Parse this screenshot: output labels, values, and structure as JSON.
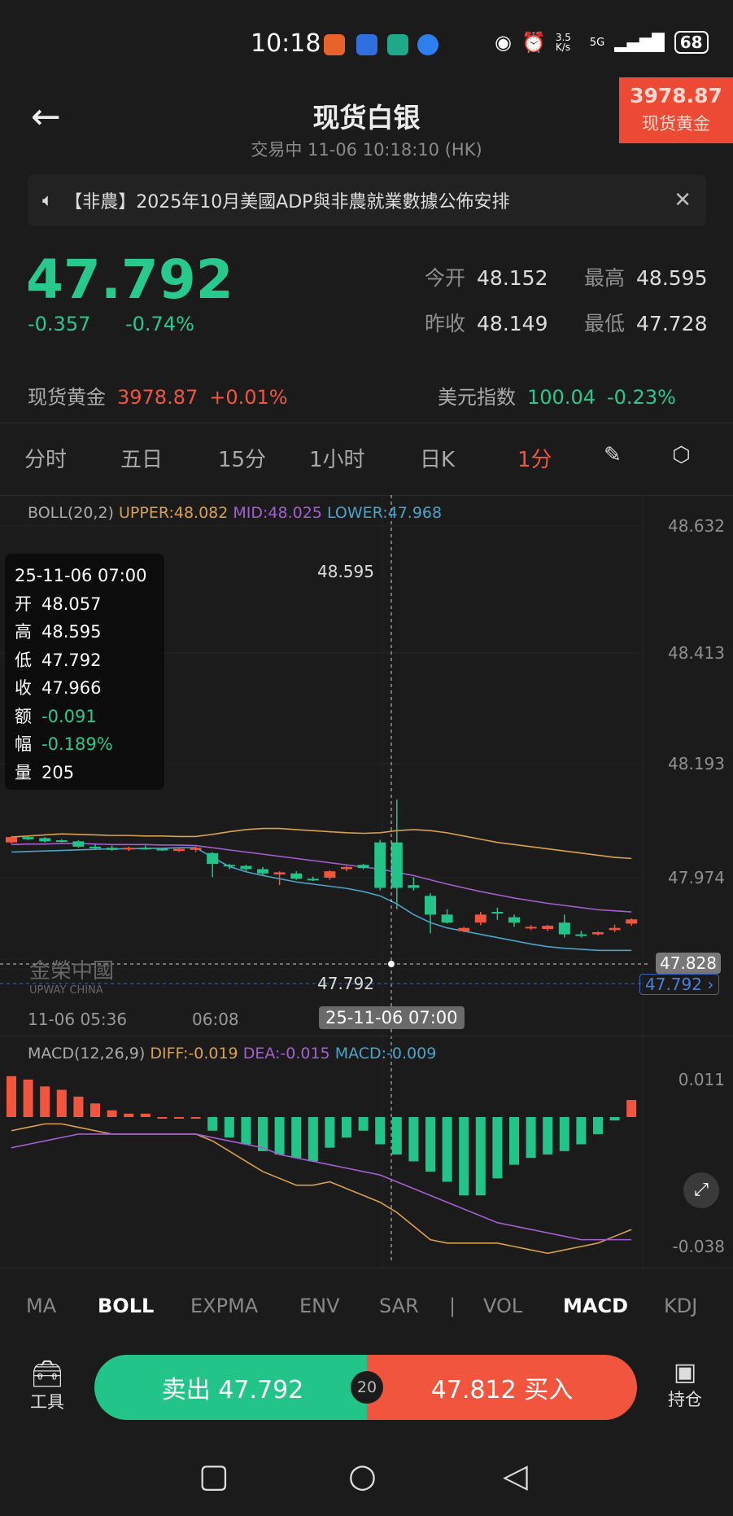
{
  "status_bar": {
    "time": "10:18",
    "net_speed": "3.5 K/s",
    "network": "5G",
    "battery": "68"
  },
  "header": {
    "title": "现货白银",
    "subtitle": "交易中  11-06 10:18:10 (HK)",
    "badge_value": "3978.87",
    "badge_label": "现货黄金"
  },
  "notice": {
    "text": "【非農】2025年10月美國ADP與非農就業數據公佈安排"
  },
  "quote": {
    "price": "47.792",
    "change": "-0.357",
    "change_pct": "-0.74%",
    "stats": [
      {
        "k": "今开",
        "v": "48.152"
      },
      {
        "k": "最高",
        "v": "48.595"
      },
      {
        "k": "昨收",
        "v": "48.149"
      },
      {
        "k": "最低",
        "v": "47.728"
      }
    ]
  },
  "related": {
    "gold_label": "现货黄金",
    "gold_value": "3978.87",
    "gold_pct": "+0.01%",
    "usd_label": "美元指数",
    "usd_value": "100.04",
    "usd_pct": "-0.23%"
  },
  "tabs": [
    "分时",
    "五日",
    "15分",
    "1小时",
    "日K",
    "1分"
  ],
  "active_tab": "1分",
  "colors": {
    "up": "#f2553d",
    "down": "#23c48a",
    "upper": "#d9a04e",
    "mid": "#a45fd0",
    "lower": "#4aa3c8"
  },
  "boll_legend": {
    "name": "BOLL(20,2)",
    "upper": "UPPER:48.082",
    "mid": "MID:48.025",
    "lower": "LOWER:47.968"
  },
  "tooltip": {
    "time": "25-11-06 07:00",
    "rows": [
      {
        "k": "开",
        "v": "48.057"
      },
      {
        "k": "高",
        "v": "48.595"
      },
      {
        "k": "低",
        "v": "47.792"
      },
      {
        "k": "收",
        "v": "47.966"
      },
      {
        "k": "额",
        "v": "-0.091"
      },
      {
        "k": "幅",
        "v": "-0.189%"
      },
      {
        "k": "量",
        "v": "205"
      }
    ]
  },
  "crosshair": {
    "time": "25-11-06 07:00",
    "high_mark": "48.595",
    "low_mark": "47.792",
    "price_tag": "47.828",
    "last_tag": "47.792 ›"
  },
  "watermark": {
    "cn": "金榮中國",
    "en": "UPWAY CHINA"
  },
  "chart_data": [
    {
      "type": "candlestick",
      "y_ticks": [
        "48.632",
        "48.413",
        "48.193",
        "47.974"
      ],
      "x_ticks": [
        "11-06 05:36",
        "06:08"
      ],
      "ohlc": [
        [
          48.04,
          48.052,
          48.038,
          48.05
        ],
        [
          48.05,
          48.052,
          48.044,
          48.046
        ],
        [
          48.048,
          48.05,
          48.04,
          48.042
        ],
        [
          48.044,
          48.046,
          48.04,
          48.042
        ],
        [
          48.042,
          48.044,
          48.03,
          48.032
        ],
        [
          48.032,
          48.036,
          48.026,
          48.03
        ],
        [
          48.03,
          48.034,
          48.024,
          48.026
        ],
        [
          48.028,
          48.032,
          48.024,
          48.03
        ],
        [
          48.03,
          48.034,
          48.026,
          48.028
        ],
        [
          48.028,
          48.03,
          48.024,
          48.026
        ],
        [
          48.024,
          48.03,
          48.022,
          48.028
        ],
        [
          48.026,
          48.032,
          48.022,
          48.03
        ],
        [
          48.02,
          48.022,
          47.975,
          48.0
        ],
        [
          47.998,
          48.0,
          47.99,
          47.996
        ],
        [
          47.996,
          47.998,
          47.986,
          47.99
        ],
        [
          47.99,
          47.994,
          47.978,
          47.982
        ],
        [
          47.98,
          47.986,
          47.96,
          47.984
        ],
        [
          47.982,
          47.986,
          47.97,
          47.972
        ],
        [
          47.972,
          47.976,
          47.968,
          47.97
        ],
        [
          47.974,
          47.988,
          47.97,
          47.986
        ],
        [
          47.99,
          47.996,
          47.986,
          47.994
        ],
        [
          47.998,
          48.0,
          47.99,
          47.992
        ],
        [
          48.04,
          48.045,
          47.95,
          47.955
        ],
        [
          48.04,
          48.12,
          47.915,
          47.955
        ],
        [
          47.96,
          47.975,
          47.95,
          47.955
        ],
        [
          47.94,
          47.945,
          47.87,
          47.905
        ],
        [
          47.905,
          47.915,
          47.888,
          47.89
        ],
        [
          47.874,
          47.882,
          47.872,
          47.88
        ],
        [
          47.89,
          47.91,
          47.885,
          47.905
        ],
        [
          47.91,
          47.918,
          47.895,
          47.908
        ],
        [
          47.9,
          47.905,
          47.882,
          47.89
        ],
        [
          47.88,
          47.885,
          47.876,
          47.882
        ],
        [
          47.878,
          47.886,
          47.874,
          47.884
        ],
        [
          47.89,
          47.905,
          47.862,
          47.868
        ],
        [
          47.868,
          47.874,
          47.862,
          47.866
        ],
        [
          47.868,
          47.874,
          47.866,
          47.872
        ],
        [
          47.876,
          47.886,
          47.872,
          47.88
        ],
        [
          47.888,
          47.898,
          47.884,
          47.896
        ]
      ],
      "upper": [
        48.05,
        48.052,
        48.054,
        48.056,
        48.055,
        48.054,
        48.053,
        48.053,
        48.052,
        48.052,
        48.051,
        48.051,
        48.055,
        48.06,
        48.064,
        48.066,
        48.066,
        48.064,
        48.062,
        48.06,
        48.058,
        48.057,
        48.058,
        48.062,
        48.064,
        48.062,
        48.058,
        48.052,
        48.046,
        48.04,
        48.036,
        48.032,
        48.028,
        48.024,
        48.02,
        48.016,
        48.012,
        48.01
      ],
      "mid": [
        48.036,
        48.037,
        48.037,
        48.038,
        48.038,
        48.037,
        48.036,
        48.036,
        48.036,
        48.035,
        48.035,
        48.034,
        48.03,
        48.026,
        48.022,
        48.018,
        48.014,
        48.01,
        48.006,
        48.002,
        47.998,
        47.994,
        47.99,
        47.984,
        47.978,
        47.97,
        47.962,
        47.955,
        47.948,
        47.942,
        47.936,
        47.931,
        47.926,
        47.922,
        47.918,
        47.914,
        47.912,
        47.91
      ],
      "lower": [
        48.022,
        48.023,
        48.024,
        48.025,
        48.026,
        48.027,
        48.028,
        48.028,
        48.029,
        48.029,
        48.03,
        48.03,
        48.012,
        47.995,
        47.985,
        47.978,
        47.972,
        47.966,
        47.962,
        47.958,
        47.954,
        47.948,
        47.94,
        47.925,
        47.905,
        47.89,
        47.88,
        47.874,
        47.868,
        47.862,
        47.856,
        47.85,
        47.845,
        47.842,
        47.84,
        47.838,
        47.838,
        47.838
      ]
    },
    {
      "type": "bar+line",
      "legend": {
        "name": "MACD(12,26,9)",
        "diff": "DIFF:-0.019",
        "dea": "DEA:-0.015",
        "macd": "MACD:-0.009"
      },
      "y_ticks": [
        "0.011",
        "-0.038"
      ],
      "hist": [
        0.012,
        0.011,
        0.009,
        0.008,
        0.006,
        0.004,
        0.002,
        0.001,
        0.001,
        0,
        0,
        0,
        -0.004,
        -0.006,
        -0.008,
        -0.01,
        -0.011,
        -0.012,
        -0.013,
        -0.009,
        -0.006,
        -0.004,
        -0.008,
        -0.011,
        -0.013,
        -0.016,
        -0.019,
        -0.023,
        -0.023,
        -0.018,
        -0.014,
        -0.012,
        -0.011,
        -0.01,
        -0.008,
        -0.005,
        -0.001,
        0.005
      ],
      "diff": [
        -0.004,
        -0.003,
        -0.002,
        -0.002,
        -0.003,
        -0.004,
        -0.005,
        -0.005,
        -0.005,
        -0.005,
        -0.005,
        -0.005,
        -0.007,
        -0.01,
        -0.013,
        -0.016,
        -0.018,
        -0.02,
        -0.02,
        -0.019,
        -0.021,
        -0.023,
        -0.025,
        -0.028,
        -0.032,
        -0.036,
        -0.037,
        -0.037,
        -0.037,
        -0.037,
        -0.038,
        -0.039,
        -0.04,
        -0.039,
        -0.038,
        -0.037,
        -0.035,
        -0.033
      ],
      "dea": [
        -0.009,
        -0.008,
        -0.007,
        -0.006,
        -0.005,
        -0.005,
        -0.005,
        -0.005,
        -0.005,
        -0.005,
        -0.005,
        -0.005,
        -0.006,
        -0.007,
        -0.008,
        -0.009,
        -0.011,
        -0.012,
        -0.013,
        -0.014,
        -0.015,
        -0.016,
        -0.017,
        -0.019,
        -0.021,
        -0.023,
        -0.025,
        -0.027,
        -0.029,
        -0.031,
        -0.032,
        -0.033,
        -0.034,
        -0.035,
        -0.036,
        -0.036,
        -0.036,
        -0.036
      ]
    }
  ],
  "indicators": [
    "MA",
    "BOLL",
    "EXPMA",
    "ENV",
    "SAR",
    "|",
    "VOL",
    "MACD",
    "KDJ"
  ],
  "trade": {
    "tools": "工具",
    "sell": "卖出 47.792",
    "leverage": "20",
    "buy": "47.812 买入",
    "positions": "持仓"
  }
}
